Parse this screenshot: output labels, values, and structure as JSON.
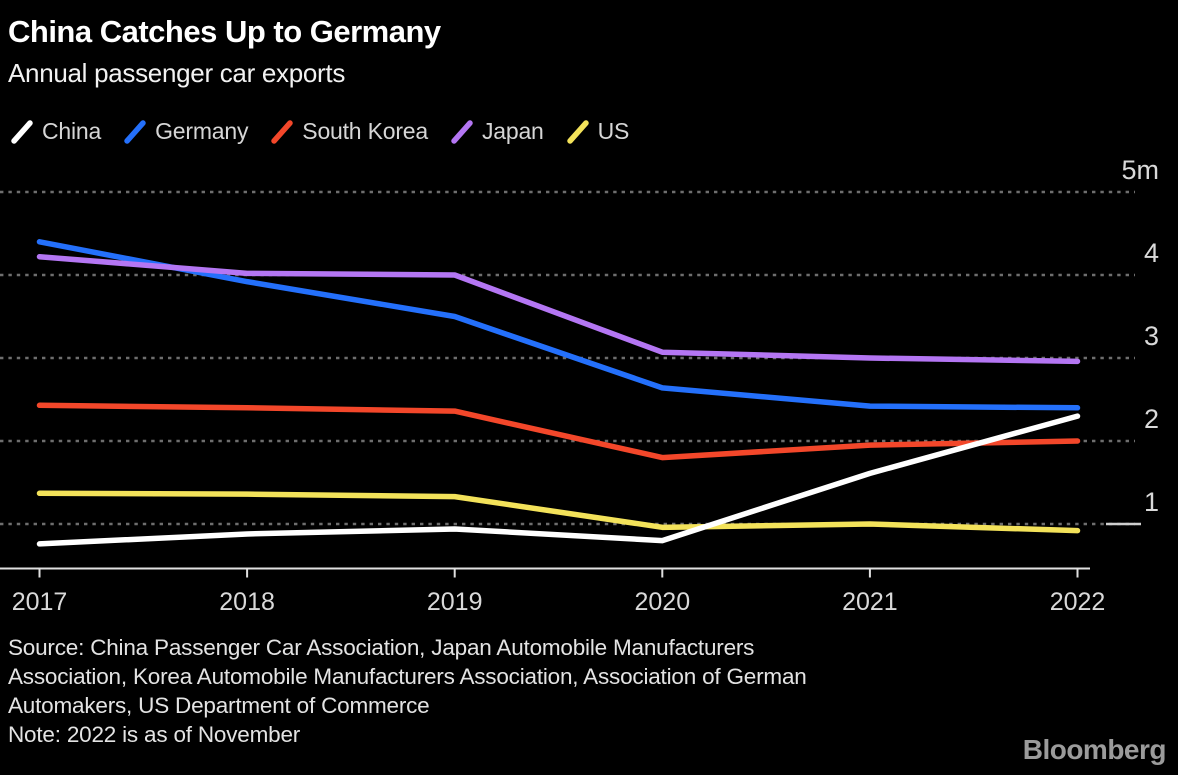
{
  "header": {
    "title": "China Catches Up to Germany",
    "subtitle": "Annual passenger car exports"
  },
  "legend": {
    "items": [
      {
        "label": "China",
        "color": "#ffffff"
      },
      {
        "label": "Germany",
        "color": "#2470fb"
      },
      {
        "label": "South Korea",
        "color": "#f3472a"
      },
      {
        "label": "Japan",
        "color": "#b476f3"
      },
      {
        "label": "US",
        "color": "#f3e25a"
      }
    ]
  },
  "chart_data": {
    "type": "line",
    "title": "China Catches Up to Germany",
    "subtitle": "Annual passenger car exports",
    "unit": "million cars",
    "x": [
      2017,
      2018,
      2019,
      2020,
      2021,
      2022
    ],
    "series": [
      {
        "name": "China",
        "color": "#ffffff",
        "values": [
          0.76,
          0.88,
          0.94,
          0.8,
          1.61,
          2.3
        ]
      },
      {
        "name": "Germany",
        "color": "#2470fb",
        "values": [
          4.4,
          3.92,
          3.5,
          2.64,
          2.42,
          2.4
        ]
      },
      {
        "name": "South Korea",
        "color": "#f3472a",
        "values": [
          2.43,
          2.4,
          2.36,
          1.8,
          1.95,
          2.0
        ]
      },
      {
        "name": "Japan",
        "color": "#b476f3",
        "values": [
          4.22,
          4.02,
          4.0,
          3.07,
          3.0,
          2.96
        ]
      },
      {
        "name": "US",
        "color": "#f3e25a",
        "values": [
          1.37,
          1.36,
          1.33,
          0.96,
          1.0,
          0.92
        ]
      }
    ],
    "yticks": [
      1,
      2,
      3,
      4,
      5
    ],
    "ytick_labels": [
      "1",
      "2",
      "3",
      "4",
      "5m"
    ],
    "ylim": [
      0.5,
      5.3
    ],
    "grid": "horizontal dotted",
    "legend_position": "top-left",
    "draw_order": [
      "Germany",
      "Japan",
      "South Korea",
      "US",
      "China"
    ],
    "colors": {
      "background": "#000000",
      "gridline": "#6e6e6e",
      "axis": "#e0e0e0",
      "tick_label": "#d9d9d9"
    }
  },
  "footer": {
    "source_lines": [
      "Source: China Passenger Car Association, Japan Automobile Manufacturers",
      "Association, Korea Automobile Manufacturers Association, Association of German",
      "Automakers, US Department of Commerce",
      "Note: 2022 is as of November"
    ],
    "logo": "Bloomberg"
  }
}
